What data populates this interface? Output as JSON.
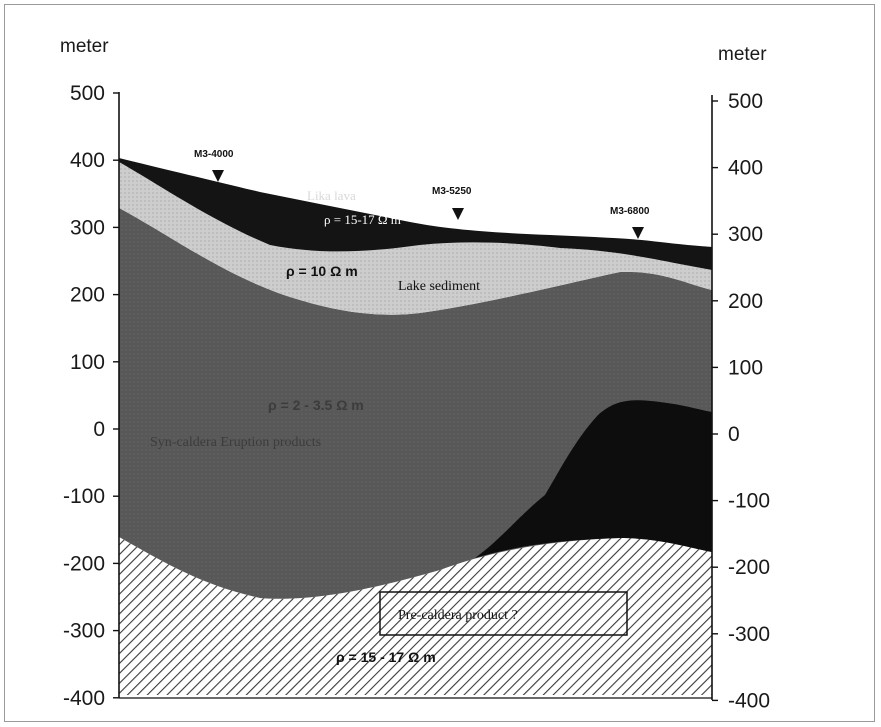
{
  "axes": {
    "left_unit": "meter",
    "right_unit": "meter",
    "left_ticks": [
      "500",
      "400",
      "300",
      "200",
      "100",
      "0",
      "-100",
      "-200",
      "-300",
      "-400"
    ],
    "right_ticks": [
      "500",
      "400",
      "300",
      "200",
      "100",
      "0",
      "-100",
      "-200",
      "-300",
      "-400"
    ],
    "range": [
      -400,
      500
    ]
  },
  "wells": [
    {
      "label": "M3-4000"
    },
    {
      "label": "M3-5250"
    },
    {
      "label": "M3-6800"
    }
  ],
  "labels": {
    "lake_layer_name": "Lika lava",
    "lake_layer_resistivity": "ρ = 15-17 Ω m",
    "sediment_resistivity": "ρ = 10 Ω m",
    "sediment_name": "Lake sediment",
    "syn_resistivity": "ρ = 2 - 3.5 Ω m",
    "syn_name": "Syn-caldera Eruption products",
    "pre_caldera": "Pre-caldera product ?",
    "basement_resistivity": "ρ = 15 - 17 Ω m"
  },
  "colors": {
    "lava": "#141414",
    "sediment": "#c9c9c9",
    "syn_caldera": "#595959",
    "dark_body": "#0d0d0d",
    "basement_hatch": "#3a3a3a"
  }
}
